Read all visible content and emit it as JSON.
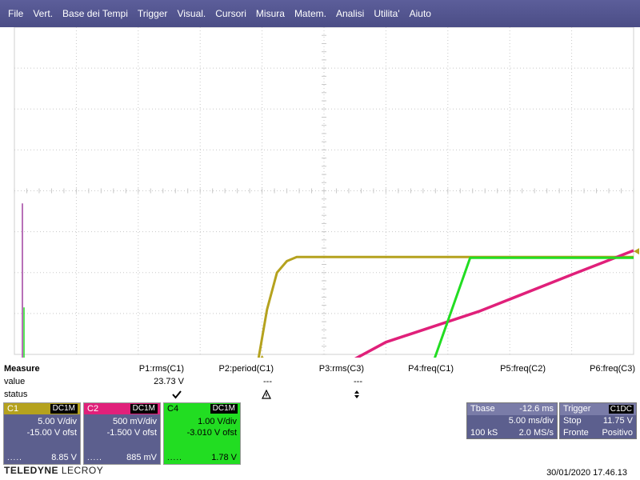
{
  "menu": [
    "File",
    "Vert.",
    "Base dei Tempi",
    "Trigger",
    "Visual.",
    "Cursori",
    "Misura",
    "Matem.",
    "Analisi",
    "Utilita'",
    "Aiuto"
  ],
  "measure": {
    "title": "Measure",
    "row_value": "value",
    "row_status": "status",
    "params": [
      {
        "name": "P1:rms(C1)",
        "value": "23.73 V",
        "status": "check"
      },
      {
        "name": "P2:period(C1)",
        "value": "---",
        "status": "warning"
      },
      {
        "name": "P3:rms(C3)",
        "value": "---",
        "status": "updown"
      },
      {
        "name": "P4:freq(C1)",
        "value": "",
        "status": ""
      },
      {
        "name": "P5:freq(C2)",
        "value": "",
        "status": ""
      },
      {
        "name": "P6:freq(C3)",
        "value": "",
        "status": ""
      }
    ]
  },
  "channels": [
    {
      "name": "C1",
      "coupling": "DC1M",
      "vdiv": "5.00 V/div",
      "offset": "-15.00 V ofst",
      "dots": ".....",
      "value": "8.85 V",
      "color": "#b5a21e",
      "bg": "#5c5f8e",
      "text": "#ffffff"
    },
    {
      "name": "C2",
      "coupling": "DC1M",
      "vdiv": "500 mV/div",
      "offset": "-1.500 V ofst",
      "dots": ".....",
      "value": "885 mV",
      "color": "#e0207a",
      "bg": "#5c5f8e",
      "text": "#ffffff"
    },
    {
      "name": "C4",
      "coupling": "DC1M",
      "vdiv": "1.00 V/div",
      "offset": "-3.010 V ofst",
      "dots": ".....",
      "value": "1.78 V",
      "color": "#22dd22",
      "bg": "#22dd22",
      "text": "#000000"
    }
  ],
  "timebase": {
    "title": "Tbase",
    "delay": "-12.6 ms",
    "tdiv": "5.00 ms/div",
    "samples": "100 kS",
    "rate": "2.0 MS/s"
  },
  "trigger": {
    "title": "Trigger",
    "source": "C1DC",
    "mode": "Stop",
    "level": "11.75 V",
    "type": "Fronte",
    "slope": "Positivo"
  },
  "brand": {
    "part1": "TELEDYNE",
    "part2": "LECROY"
  },
  "datetime": "30/01/2020 17.46.13",
  "chart_data": {
    "type": "line",
    "x_unit": "ms",
    "x_range": [
      -37.6,
      12.4
    ],
    "series": [
      {
        "name": "C1",
        "color": "#b5a21e",
        "points": [
          [
            -37.6,
            -14.9
          ],
          [
            -20.8,
            -14.9
          ],
          [
            -19.8,
            -14.6
          ],
          [
            -19.2,
            -13.5
          ],
          [
            -18.6,
            -11
          ],
          [
            -18,
            -6.5
          ],
          [
            -17.2,
            0.5
          ],
          [
            -16.4,
            5
          ],
          [
            -15.6,
            6.4
          ],
          [
            -14.8,
            6.9
          ],
          [
            12.4,
            6.9
          ]
        ]
      },
      {
        "name": "C2",
        "color": "#e0207a",
        "points": [
          [
            -37.6,
            -1.5
          ],
          [
            -21,
            -1.5
          ],
          [
            -19.6,
            -1.42
          ],
          [
            -18.5,
            -1.2
          ],
          [
            -17.4,
            -0.95
          ],
          [
            -16.6,
            -1.3
          ],
          [
            -15.2,
            -0.97
          ],
          [
            -7.6,
            -0.35
          ],
          [
            0,
            0.03
          ],
          [
            7.5,
            0.48
          ],
          [
            12.4,
            0.77
          ]
        ]
      },
      {
        "name": "C4",
        "color": "#22dd22",
        "points": [
          [
            -37.6,
            -3.03
          ],
          [
            -21,
            -3.03
          ],
          [
            -17.2,
            -2.87
          ],
          [
            -16.5,
            -3.03
          ],
          [
            -10,
            -3.03
          ],
          [
            -5.8,
            -3.03
          ],
          [
            -5.8,
            -2.91
          ],
          [
            -0.8,
            1.37
          ],
          [
            12.4,
            1.37
          ]
        ]
      }
    ],
    "dashed_line_y_C1": -7.0
  }
}
